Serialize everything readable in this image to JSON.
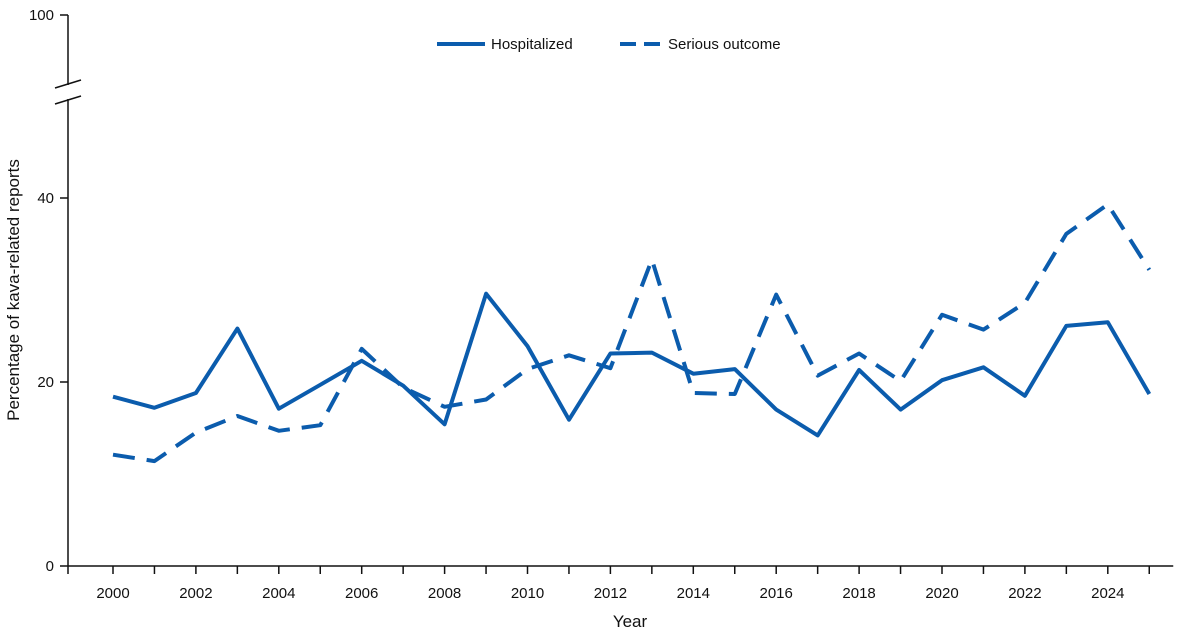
{
  "chart_data": {
    "type": "line",
    "xlabel": "Year",
    "ylabel": "Percentage of kava-related reports",
    "x": [
      2000,
      2001,
      2002,
      2003,
      2004,
      2005,
      2006,
      2007,
      2008,
      2009,
      2010,
      2011,
      2012,
      2013,
      2014,
      2015,
      2016,
      2017,
      2018,
      2019,
      2020,
      2021,
      2022,
      2023,
      2024,
      2025
    ],
    "x_tick_labels": [
      "2000",
      "2002",
      "2004",
      "2006",
      "2008",
      "2010",
      "2012",
      "2014",
      "2016",
      "2018",
      "2020",
      "2022",
      "2024"
    ],
    "y_ticks": [
      0,
      20,
      40,
      100
    ],
    "y_tick_labels": [
      "0",
      "20",
      "40",
      "100"
    ],
    "y_axis_break": true,
    "ylim": [
      0,
      100
    ],
    "grid": false,
    "legend_position": "top-center",
    "series": [
      {
        "name": "Hospitalized",
        "style": "solid",
        "color": "#0b5cad",
        "values": [
          18.4,
          17.2,
          18.8,
          25.8,
          17.1,
          19.7,
          22.3,
          19.6,
          15.4,
          29.6,
          23.9,
          15.9,
          23.1,
          23.2,
          20.9,
          21.4,
          17.0,
          14.2,
          21.3,
          17.0,
          20.2,
          21.6,
          18.5,
          26.1,
          26.5,
          18.7
        ]
      },
      {
        "name": "Serious outcome",
        "style": "dashed",
        "color": "#0b5cad",
        "values": [
          12.1,
          11.4,
          14.5,
          16.3,
          14.7,
          15.3,
          23.6,
          19.4,
          17.3,
          18.1,
          21.4,
          22.9,
          21.5,
          33.3,
          18.8,
          18.7,
          29.5,
          20.7,
          23.1,
          20.1,
          27.3,
          25.7,
          28.6,
          36.1,
          39.3,
          32.2
        ]
      }
    ]
  }
}
